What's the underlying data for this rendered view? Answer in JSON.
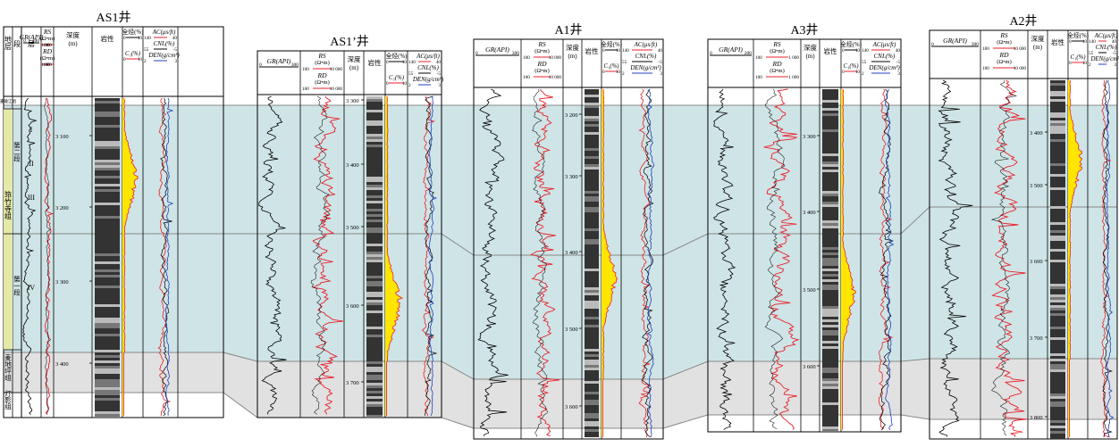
{
  "colors": {
    "blue_band": "#cfe4e6",
    "gray_band": "#e1e1e1",
    "gr": "#000000",
    "resistivity": "#e8202a",
    "gas_fill": "#ffe600",
    "ac": "#e8202a",
    "cnl": "#000000",
    "den": "#1f3fbf",
    "frame": "#000000",
    "correlation_line": "#888888"
  },
  "panels": [
    {
      "well": "AS1井",
      "has_strat": true,
      "depth_ticks": [
        "3 100",
        "3 200",
        "3 300",
        "3 400"
      ],
      "headers": {
        "gr": "GR(API)",
        "gr_min": "0",
        "gr_max": "200",
        "rs": "RS",
        "rd": "RD",
        "ohm": "(Ω•m)",
        "rs_min": "100",
        "rs_max": "1 000",
        "rd_min": "100",
        "rd_max": "1 000",
        "depth1": "深度",
        "depth2": "(m)",
        "lith": "岩性",
        "tg": "全烃(%)",
        "tg_min": "0",
        "tg_max": "10",
        "c1": "C₁(%)",
        "c1_min": "0",
        "c1_max": "10",
        "ac": "AC(μs/ft)",
        "ac_min": "140",
        "ac_max": "40",
        "cnl": "CNL(%)",
        "cnl_min": "55",
        "cnl_max": "-5",
        "den": "DEN(g/cm³)",
        "den_min": "2",
        "den_max": "3"
      }
    },
    {
      "well": "AS1’井",
      "has_strat": false,
      "depth_ticks": [
        "3 300",
        "3 400",
        "3 500",
        "3 600",
        "3 700"
      ],
      "headers": {
        "gr": "GR(API)",
        "gr_min": "0",
        "gr_max": "300",
        "rs": "RS",
        "rd": "RD",
        "ohm": "(Ω•m)",
        "rs_min": "100",
        "rs_max": "10 000",
        "rd_min": "100",
        "rd_max": "10 000",
        "depth1": "深度",
        "depth2": "(m)",
        "lith": "岩性",
        "tg": "全烃(%)",
        "tg_min": "0",
        "tg_max": "10",
        "c1": "C₁(%)",
        "c1_min": "0",
        "c1_max": "10",
        "ac": "AC(μs/ft)",
        "ac_min": "140",
        "ac_max": "40",
        "cnl": "CNL(%)",
        "cnl_min": "55",
        "cnl_max": "-5",
        "den": "DEN(g/cm³)",
        "den_min": "2",
        "den_max": "3"
      }
    },
    {
      "well": "A1井",
      "has_strat": false,
      "depth_ticks": [
        "3 200",
        "3 300",
        "3 400",
        "3 500",
        "3 600"
      ],
      "headers": {
        "gr": "GR(API)",
        "gr_min": "0",
        "gr_max": "300",
        "rs": "RS",
        "rd": "RD",
        "ohm": "(Ω•m)",
        "rs_min": "100",
        "rs_max": "10 000",
        "rd_min": "100",
        "rd_max": "10 000",
        "depth1": "深度",
        "depth2": "(m)",
        "lith": "岩性",
        "tg": "全烃(%)",
        "tg_min": "0",
        "tg_max": "10",
        "c1": "C₁(%)",
        "c1_min": "0",
        "c1_max": "10",
        "ac": "AC(μs/ft)",
        "ac_min": "140",
        "ac_max": "40",
        "cnl": "CNL(%)",
        "cnl_min": "55",
        "cnl_max": "-5",
        "den": "DEN(g/cm³)",
        "den_min": "2",
        "den_max": "3"
      }
    },
    {
      "well": "A3井",
      "has_strat": false,
      "depth_ticks": [
        "3 300",
        "3 400",
        "3 500",
        "3 600"
      ],
      "headers": {
        "gr": "GR(API)",
        "gr_min": "0",
        "gr_max": "200",
        "rs": "RS",
        "rd": "RD",
        "ohm": "(Ω•m)",
        "rs_min": "100",
        "rs_max": "1 000",
        "rd_min": "100",
        "rd_max": "1 000",
        "depth1": "深度",
        "depth2": "(m)",
        "lith": "岩性",
        "tg": "全烃(%)",
        "tg_min": "0",
        "tg_max": "10",
        "c1": "C₁(%)",
        "c1_min": "0",
        "c1_max": "10",
        "ac": "AC(μs/ft)",
        "ac_min": "140",
        "ac_max": "40",
        "cnl": "CNL(%)",
        "cnl_min": "55",
        "cnl_max": "-5",
        "den": "DEN(g/cm³)",
        "den_min": "2",
        "den_max": "3"
      }
    },
    {
      "well": "A2井",
      "has_strat": false,
      "depth_ticks": [
        "3 400",
        "3 500",
        "3 600",
        "3 700",
        "3 800"
      ],
      "headers": {
        "gr": "GR(API)",
        "gr_min": "0",
        "gr_max": "300",
        "rs": "RS",
        "rd": "RD",
        "ohm": "(Ω•m)",
        "rs_min": "100",
        "rs_max": "10 000",
        "rd_min": "100",
        "rd_max": "10 000",
        "depth1": "深度",
        "depth2": "(m)",
        "lith": "岩性",
        "tg": "全烃(%)",
        "tg_min": "0",
        "tg_max": "10",
        "c1": "C₁(%)",
        "c1_min": "0",
        "c1_max": "10",
        "ac": "AC(μs/ft)",
        "ac_min": "140",
        "ac_max": "40",
        "cnl": "CNL(%)",
        "cnl_min": "55",
        "cnl_max": "-5",
        "den": "DEN(g/cm³)",
        "den_min": "2",
        "den_max": "3"
      }
    }
  ],
  "strat": {
    "head_di": "地层",
    "head_duan": "段",
    "head_ceng": "层",
    "top_unit": "嘉陵江组",
    "group_main": "筇竹寺组",
    "seg2": "第二段",
    "seg1": "第一段",
    "layers": [
      "I",
      "II",
      "III",
      "IV"
    ],
    "maidi": "麦地坪组",
    "dengying": "灯影组"
  }
}
